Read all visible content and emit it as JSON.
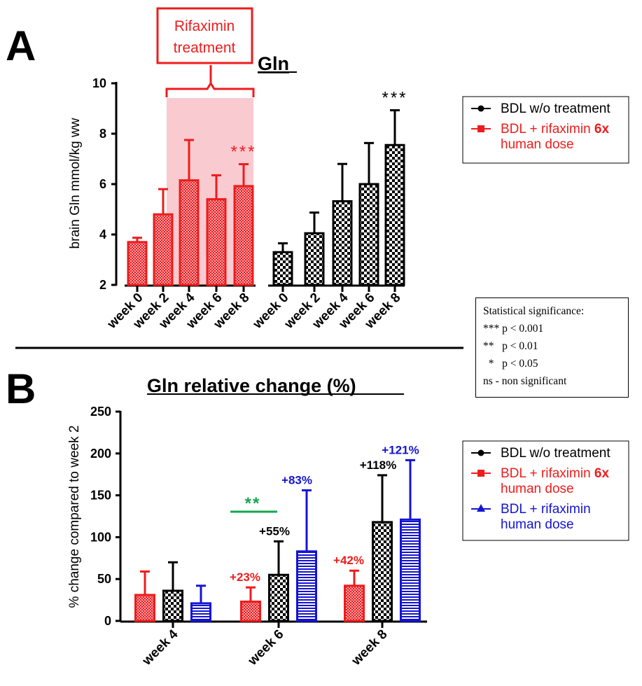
{
  "panels": {
    "a_label": "A",
    "b_label": "B",
    "a_title": "Gln",
    "b_title": "Gln relative change (%)",
    "treatment_box": [
      "Rifaximin",
      "treatment"
    ]
  },
  "colors": {
    "red": "#ee1c1c",
    "black": "#000000",
    "blue": "#1414d2",
    "green": "#12a84e",
    "shade": "#f8c2c9"
  },
  "stats_box": {
    "title": "Statistical significance:",
    "lines": [
      "*** p < 0.001",
      "**   p < 0.01",
      "  *   p < 0.05",
      "ns - non significant"
    ]
  },
  "chart_data": [
    {
      "type": "bar",
      "panel": "A",
      "title": "Gln",
      "ylabel": "brain Gln mmol/kg ww",
      "ylim": [
        2,
        10
      ],
      "yticks": [
        2,
        4,
        6,
        8,
        10
      ],
      "groups": [
        {
          "series": "BDL + rifaximin 6x human dose",
          "color": "red",
          "categories": [
            "week 0",
            "week 2",
            "week 4",
            "week 6",
            "week 8"
          ],
          "values": [
            3.7,
            4.8,
            6.15,
            5.4,
            5.92
          ],
          "errors": [
            0.17,
            1.0,
            1.6,
            0.95,
            0.87
          ],
          "significance": {
            "index": 4,
            "text": "***"
          }
        },
        {
          "series": "BDL w/o treatment",
          "color": "black",
          "categories": [
            "week 0",
            "week 2",
            "week 4",
            "week 6",
            "week 8"
          ],
          "values": [
            3.3,
            4.05,
            5.32,
            6.0,
            7.55
          ],
          "errors": [
            0.35,
            0.82,
            1.48,
            1.63,
            1.38
          ],
          "significance": {
            "index": 4,
            "text": "***"
          }
        }
      ],
      "legend": {
        "position": "right",
        "entries": [
          {
            "marker": "circle",
            "color": "black",
            "lines": [
              "BDL w/o treatment"
            ]
          },
          {
            "marker": "square",
            "color": "red",
            "lines": [
              "BDL + rifaximin ",
              "human dose"
            ],
            "bold_suffix": "6x"
          }
        ]
      }
    },
    {
      "type": "bar",
      "panel": "B",
      "title": "Gln relative change (%)",
      "ylabel": "% change compared to week 2",
      "ylim": [
        0,
        250
      ],
      "yticks": [
        0,
        50,
        100,
        150,
        200,
        250
      ],
      "categories": [
        "week 4",
        "week 6",
        "week 8"
      ],
      "series": [
        {
          "name": "BDL + rifaximin 6x human dose",
          "color": "red",
          "values": [
            31,
            23,
            42
          ],
          "errors": [
            28,
            17,
            18
          ],
          "labels": [
            null,
            "+23%",
            "+42%"
          ]
        },
        {
          "name": "BDL w/o treatment",
          "color": "black",
          "values": [
            36,
            55,
            118
          ],
          "errors": [
            34,
            40,
            56
          ],
          "labels": [
            null,
            "+55%",
            "+118%"
          ]
        },
        {
          "name": "BDL + rifaximin human dose",
          "color": "blue",
          "values": [
            21,
            83,
            121
          ],
          "errors": [
            21,
            73,
            71
          ],
          "labels": [
            null,
            "+83%",
            "+121%"
          ]
        }
      ],
      "significance": {
        "category": "week 6",
        "text": "**",
        "color": "green"
      },
      "legend": {
        "position": "right",
        "entries": [
          {
            "marker": "circle",
            "color": "black",
            "lines": [
              "BDL w/o treatment"
            ]
          },
          {
            "marker": "square",
            "color": "red",
            "lines": [
              "BDL + rifaximin ",
              "human dose"
            ],
            "bold_suffix": "6x"
          },
          {
            "marker": "triangle",
            "color": "blue",
            "lines": [
              "BDL + rifaximin",
              "human dose"
            ]
          }
        ]
      }
    }
  ]
}
